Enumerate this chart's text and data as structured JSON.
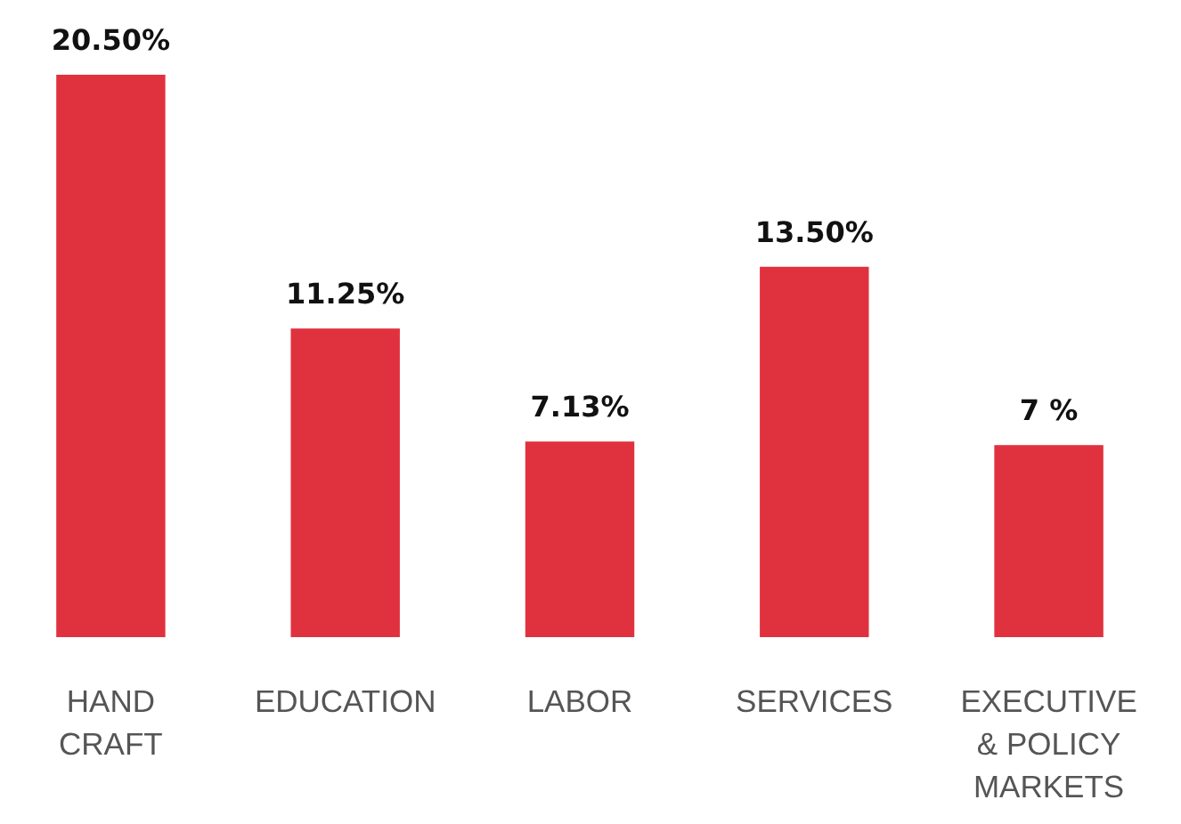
{
  "chart_data": {
    "type": "bar",
    "categories": [
      "HAND CRAFT",
      "EDUCATION",
      "LABOR",
      "SERVICES",
      "EXECUTIVE & POLICY MARKETS"
    ],
    "values": [
      20.5,
      11.25,
      7.13,
      13.5,
      7
    ],
    "value_labels": [
      "20.50%",
      "11.25%",
      "7.13%",
      "13.50%",
      "7 %"
    ],
    "color": "#e0323e"
  }
}
